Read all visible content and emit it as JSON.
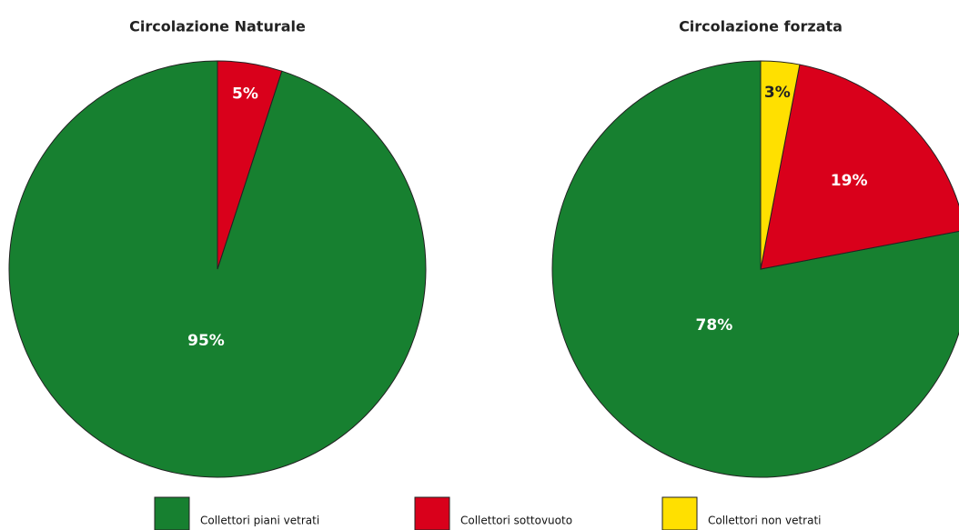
{
  "chart_data": [
    {
      "type": "pie",
      "title": "Circolazione Naturale",
      "startangle": 90,
      "counterclock": true,
      "categories": [
        "Collettori piani vetrati",
        "Collettori sottovuoto"
      ],
      "values": [
        95,
        5
      ],
      "value_labels": [
        "95%",
        "5%"
      ],
      "colors": [
        "#178030",
        "#d9001b"
      ]
    },
    {
      "type": "pie",
      "title": "Circolazione forzata",
      "startangle": 90,
      "counterclock": true,
      "categories": [
        "Collettori piani vetrati",
        "Collettori sottovuoto",
        "Collettori non vetrati"
      ],
      "values": [
        78,
        19,
        3
      ],
      "value_labels": [
        "78%",
        "19%",
        "3%"
      ],
      "colors": [
        "#178030",
        "#d9001b",
        "#ffe000"
      ]
    }
  ]
}
